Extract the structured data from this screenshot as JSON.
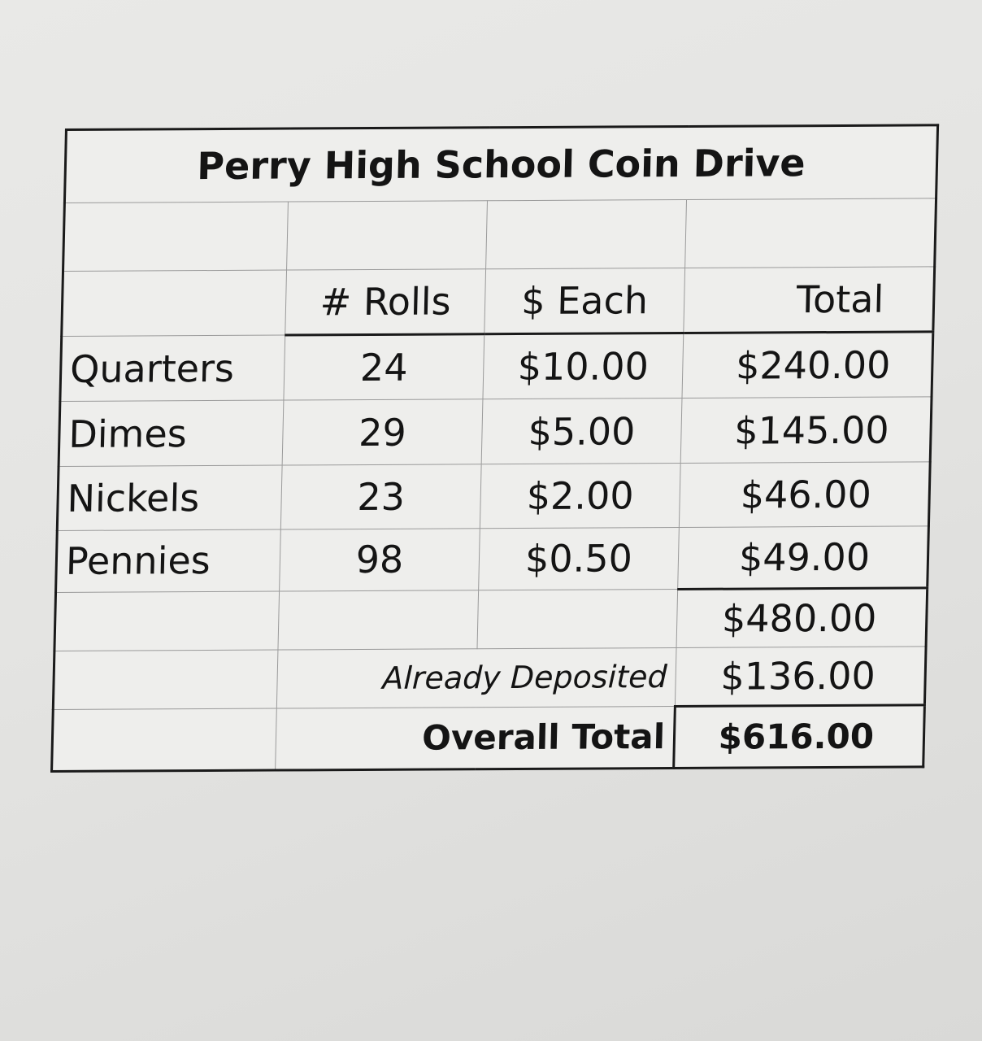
{
  "title": "Perry High School Coin Drive",
  "headers": [
    "",
    "# Rolls",
    "$ Each",
    "Total"
  ],
  "rows": [
    {
      "coin": "Quarters",
      "rolls": "24",
      "each": "$10.00",
      "total": "$240.00"
    },
    {
      "coin": "Dimes",
      "rolls": "29",
      "each": "$5.00",
      "total": "$145.00"
    },
    {
      "coin": "Nickels",
      "rolls": "23",
      "each": "$2.00",
      "total": "$46.00"
    },
    {
      "coin": "Pennies",
      "rolls": "98",
      "each": "$0.50",
      "total": "$49.00"
    }
  ],
  "subtotal": "$480.00",
  "deposited": {
    "label": "Already Deposited",
    "value": "$136.00"
  },
  "overall": {
    "label": "Overall Total",
    "value": "$616.00"
  }
}
